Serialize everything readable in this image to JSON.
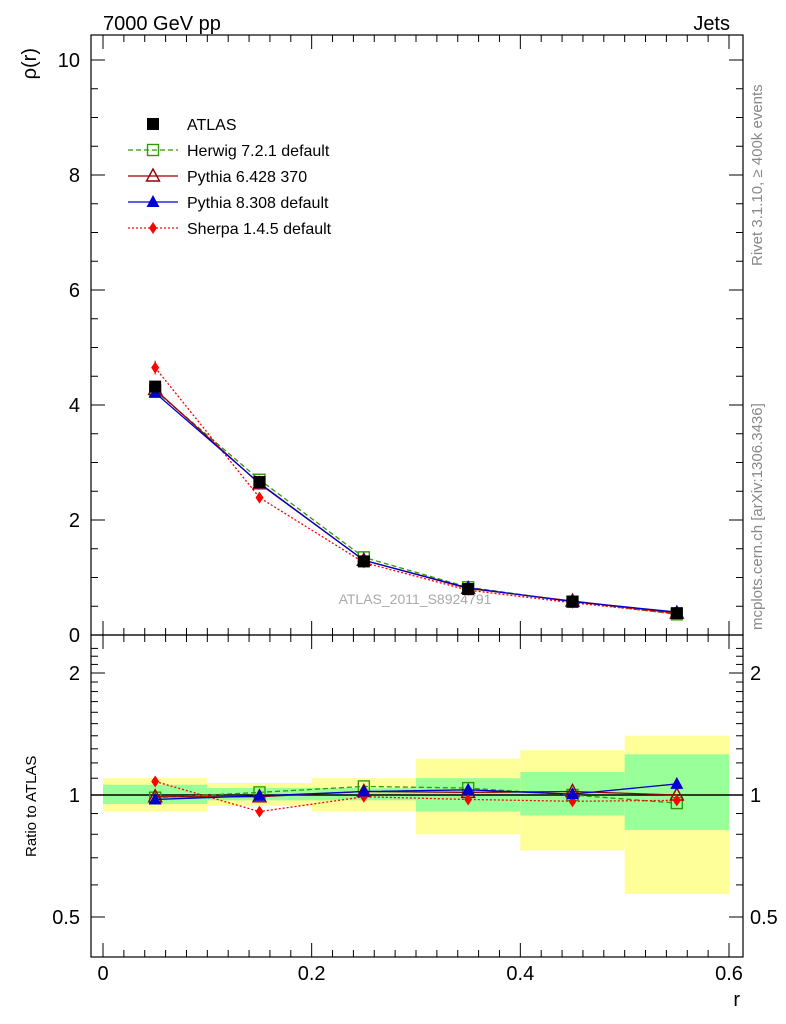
{
  "header": {
    "title_left": "7000 GeV pp",
    "title_right": "Jets",
    "side_label_top": "Rivet 3.1.10, ≥ 400k events",
    "side_label_bottom": "mcplots.cern.ch [arXiv:1306.3436]",
    "watermark": "ATLAS_2011_S8924791"
  },
  "chart_data": [
    {
      "type": "line",
      "panel": "main",
      "ylabel": "ρ(r)",
      "xlabel": "",
      "xlim": [
        0,
        0.6
      ],
      "ylim": [
        0,
        10.5
      ],
      "yticks": [
        0,
        2,
        4,
        6,
        8,
        10
      ],
      "ytick_labels": [
        "0",
        "2",
        "4",
        "6",
        "8",
        "10"
      ],
      "x": [
        0.05,
        0.15,
        0.25,
        0.35,
        0.45,
        0.55
      ],
      "legend": [
        "ATLAS",
        "Herwig 7.2.1 default",
        "Pythia 6.428 370",
        "Pythia 8.308 default",
        "Sherpa 1.4.5 default"
      ],
      "series": [
        {
          "name": "ATLAS",
          "color": "#000000",
          "marker": "square-filled",
          "line": "none",
          "values": [
            4.32,
            2.66,
            1.28,
            0.8,
            0.58,
            0.38
          ],
          "errors": [
            0.08,
            0.05,
            0.04,
            0.03,
            0.03,
            0.03
          ]
        },
        {
          "name": "Herwig 7.2.1 default",
          "color": "#339900",
          "marker": "square-open",
          "line": "dashed",
          "values": [
            4.25,
            2.7,
            1.35,
            0.83,
            0.58,
            0.36
          ]
        },
        {
          "name": "Pythia 6.428 370",
          "color": "#990000",
          "marker": "triangle-open",
          "line": "solid",
          "values": [
            4.27,
            2.63,
            1.3,
            0.81,
            0.59,
            0.38
          ]
        },
        {
          "name": "Pythia 8.308 default",
          "color": "#0000cc",
          "marker": "triangle-filled",
          "line": "solid",
          "values": [
            4.21,
            2.64,
            1.3,
            0.82,
            0.58,
            0.4
          ]
        },
        {
          "name": "Sherpa 1.4.5 default",
          "color": "#ff0000",
          "marker": "diamond-filled",
          "line": "dotted",
          "values": [
            4.65,
            2.39,
            1.26,
            0.78,
            0.56,
            0.37
          ],
          "errors": [
            0.12,
            0.06,
            0.04,
            0.03,
            0.03,
            0.02
          ]
        }
      ]
    },
    {
      "type": "line",
      "panel": "ratio",
      "ylabel": "Ratio to ATLAS",
      "xlabel": "r",
      "xlim": [
        0,
        0.6
      ],
      "ylim": [
        0.4,
        2.4
      ],
      "yscale": "log",
      "xticks": [
        0,
        0.2,
        0.4,
        0.6
      ],
      "xtick_labels": [
        "0",
        "0.2",
        "0.4",
        "0.6"
      ],
      "yticks": [
        0.5,
        1,
        2
      ],
      "ytick_labels": [
        "0.5",
        "1",
        "2"
      ],
      "x": [
        0.05,
        0.15,
        0.25,
        0.35,
        0.45,
        0.55
      ],
      "bands": {
        "x_edges": [
          0,
          0.1,
          0.2,
          0.3,
          0.4,
          0.5,
          0.6
        ],
        "inner_lo": [
          0.95,
          0.97,
          0.97,
          0.91,
          0.89,
          0.82
        ],
        "inner_hi": [
          1.06,
          1.04,
          1.04,
          1.1,
          1.14,
          1.26
        ],
        "outer_lo": [
          0.91,
          0.94,
          0.91,
          0.8,
          0.73,
          0.57
        ],
        "outer_hi": [
          1.1,
          1.07,
          1.1,
          1.23,
          1.29,
          1.4
        ],
        "inner_color": "#99ff99",
        "outer_color": "#ffff99"
      },
      "series": [
        {
          "name": "Herwig 7.2.1 default",
          "color": "#339900",
          "marker": "square-open",
          "line": "dashed",
          "values": [
            0.985,
            1.015,
            1.05,
            1.04,
            1.0,
            0.955
          ]
        },
        {
          "name": "Pythia 6.428 370",
          "color": "#990000",
          "marker": "triangle-open",
          "line": "solid",
          "values": [
            0.99,
            0.99,
            1.02,
            1.015,
            1.02,
            1.0
          ]
        },
        {
          "name": "Pythia 8.308 default",
          "color": "#0000cc",
          "marker": "triangle-filled",
          "line": "solid",
          "values": [
            0.975,
            0.995,
            1.02,
            1.03,
            1.005,
            1.065
          ]
        },
        {
          "name": "Sherpa 1.4.5 default",
          "color": "#ff0000",
          "marker": "diamond-filled",
          "line": "dotted",
          "values": [
            1.08,
            0.91,
            0.99,
            0.975,
            0.965,
            0.97
          ],
          "errors": [
            0.0,
            0.02,
            0.02,
            0.02,
            0.02,
            0.0
          ]
        }
      ]
    }
  ]
}
